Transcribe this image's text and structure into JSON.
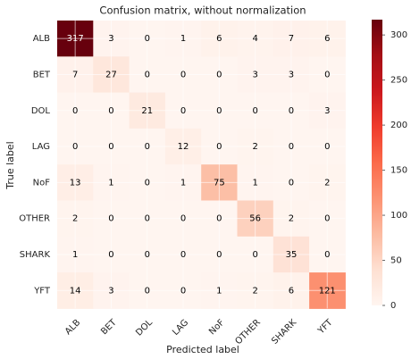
{
  "chart_data": {
    "type": "heatmap",
    "title": "Confusion matrix, without normalization",
    "x_label": "Predicted label",
    "y_label": "True label",
    "x_categories": [
      "ALB",
      "BET",
      "DOL",
      "LAG",
      "NoF",
      "OTHER",
      "SHARK",
      "YFT"
    ],
    "y_categories": [
      "ALB",
      "BET",
      "DOL",
      "LAG",
      "NoF",
      "OTHER",
      "SHARK",
      "YFT"
    ],
    "z": [
      [
        317,
        3,
        0,
        1,
        6,
        4,
        7,
        6
      ],
      [
        7,
        27,
        0,
        0,
        0,
        3,
        3,
        0
      ],
      [
        0,
        0,
        21,
        0,
        0,
        0,
        0,
        3
      ],
      [
        0,
        0,
        0,
        12,
        0,
        2,
        0,
        0
      ],
      [
        13,
        1,
        0,
        1,
        75,
        1,
        0,
        2
      ],
      [
        2,
        0,
        0,
        0,
        0,
        56,
        2,
        0
      ],
      [
        1,
        0,
        0,
        0,
        0,
        0,
        35,
        0
      ],
      [
        14,
        3,
        0,
        0,
        1,
        2,
        6,
        121
      ]
    ],
    "colorscale": [
      "#fff5f0",
      "#fee0d2",
      "#fcbba1",
      "#fc9272",
      "#fb6a4a",
      "#ef3b2c",
      "#cb181d",
      "#a50f15",
      "#67000d"
    ],
    "clim": [
      0,
      317
    ],
    "cticks": [
      0,
      50,
      100,
      150,
      200,
      250,
      300
    ],
    "grid": true
  }
}
